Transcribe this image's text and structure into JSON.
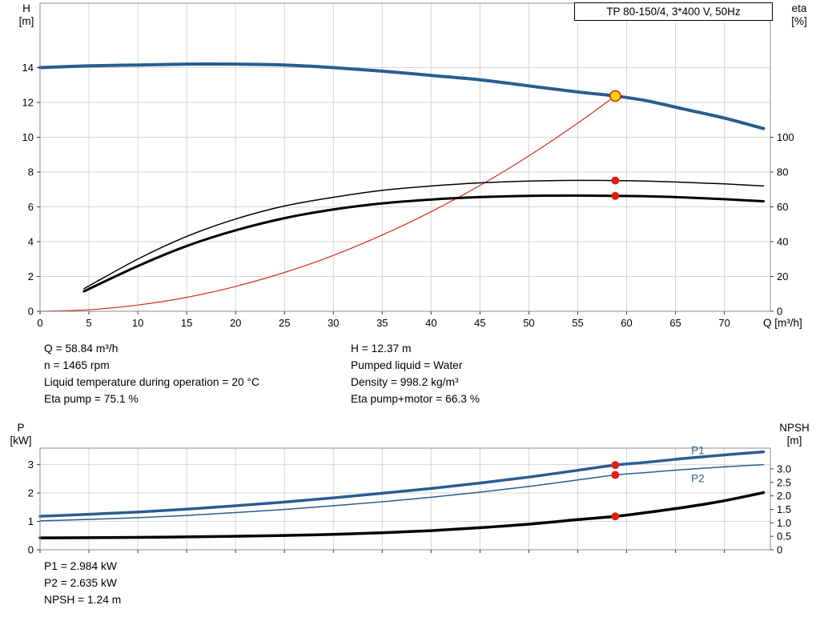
{
  "title_box": {
    "label": "TP 80-150/4, 3*400 V, 50Hz"
  },
  "axis_labels": {
    "h_name": "H",
    "h_unit": "[m]",
    "eta_name": "eta",
    "eta_unit": "[%]",
    "q_label": "Q [m³/h]",
    "p_name": "P",
    "p_unit": "[kW]",
    "npsh_name": "NPSH",
    "npsh_unit": "[m]"
  },
  "details": {
    "left": [
      "Q = 58.84 m³/h",
      "n = 1465 rpm",
      "Liquid temperature during operation = 20 °C",
      "Eta pump = 75.1 %"
    ],
    "right": [
      "H = 12.37 m",
      "Pumped liquid = Water",
      "Density = 998.2 kg/m³",
      "Eta pump+motor = 66.3 %"
    ]
  },
  "results": [
    "P1 = 2.984 kW",
    "P2 = 2.635 kW",
    "NPSH = 1.24 m"
  ],
  "colors": {
    "curve_blue": "#2a5d8f",
    "curve_red": "#d92b1c",
    "curve_black": "#000000",
    "duty_point_yellow": "#ffd800",
    "dot_red": "#e01f14",
    "grid": "#d6d6d6",
    "frame": "#8c8c8c",
    "tick": "#3c3c3c"
  },
  "chart_data": [
    {
      "type": "line",
      "title": "TP 80-150/4, 3*400 V, 50Hz",
      "xlabel": "Q [m³/h]",
      "x": {
        "min": 0,
        "max": 74.7,
        "ticks": [
          0,
          5,
          10,
          15,
          20,
          25,
          30,
          35,
          40,
          45,
          50,
          55,
          60,
          65,
          70
        ],
        "show_labels": true,
        "grid": true
      },
      "axes": {
        "H": {
          "side": "left",
          "label": "H [m]",
          "min": 0,
          "max": 17.7,
          "ticks": [
            0,
            2,
            4,
            6,
            8,
            10,
            12,
            14
          ],
          "grid": true
        },
        "eta": {
          "side": "right",
          "label": "eta [%]",
          "min": 0,
          "max": 177,
          "ticks": [
            0,
            20,
            40,
            60,
            80,
            100
          ]
        }
      },
      "series": [
        {
          "name": "head-curve",
          "axis": "H",
          "color": "#2a5d8f",
          "width": 4,
          "x": [
            0,
            5,
            10,
            15,
            20,
            25,
            30,
            35,
            40,
            45,
            50,
            55,
            58.84,
            62,
            66,
            70,
            74
          ],
          "y": [
            14.0,
            14.1,
            14.15,
            14.2,
            14.2,
            14.15,
            14.0,
            13.8,
            13.55,
            13.3,
            12.95,
            12.6,
            12.37,
            12.1,
            11.6,
            11.1,
            10.5
          ]
        },
        {
          "name": "system-curve",
          "axis": "H",
          "color": "#d92b1c",
          "width": 1.2,
          "x": [
            0,
            5,
            10,
            15,
            20,
            25,
            30,
            35,
            40,
            45,
            50,
            55,
            58.84
          ],
          "y": [
            0,
            0.09,
            0.36,
            0.8,
            1.43,
            2.23,
            3.21,
            4.38,
            5.72,
            7.23,
            8.93,
            10.81,
            12.37
          ]
        },
        {
          "name": "eta-pump-curve",
          "axis": "eta",
          "color": "#000000",
          "width": 1.5,
          "x": [
            4.5,
            10,
            15,
            20,
            25,
            30,
            35,
            40,
            45,
            50,
            55,
            58.84,
            62,
            66,
            70,
            74
          ],
          "y": [
            13,
            30,
            43,
            53,
            60.5,
            65.5,
            69.5,
            72,
            73.8,
            74.8,
            75.2,
            75.1,
            74.8,
            74.1,
            73.2,
            72.0
          ]
        },
        {
          "name": "eta-pump-motor-curve",
          "axis": "eta",
          "color": "#000000",
          "width": 3,
          "x": [
            4.5,
            10,
            15,
            20,
            25,
            30,
            35,
            40,
            45,
            50,
            55,
            58.84,
            62,
            66,
            70,
            74
          ],
          "y": [
            11.5,
            26,
            37.5,
            46.5,
            53.5,
            58.5,
            62,
            64.2,
            65.6,
            66.3,
            66.5,
            66.3,
            66.1,
            65.4,
            64.4,
            63.2
          ]
        }
      ],
      "points": [
        {
          "name": "eta-pump-point",
          "x": 58.84,
          "y": 75.1,
          "axis": "eta",
          "r": 5,
          "fill": "#e01f14"
        },
        {
          "name": "eta-pump-motor-point",
          "x": 58.84,
          "y": 66.3,
          "axis": "eta",
          "r": 5,
          "fill": "#e01f14"
        },
        {
          "name": "duty-point",
          "x": 58.84,
          "y": 12.37,
          "axis": "H",
          "r": 6.5,
          "fill": "#ffd800",
          "stroke": "#d92b1c",
          "stroke_width": 1.6
        }
      ]
    },
    {
      "type": "line",
      "x": {
        "min": 0,
        "max": 74.7,
        "ticks": [
          0,
          5,
          10,
          15,
          20,
          25,
          30,
          35,
          40,
          45,
          50,
          55,
          60,
          65,
          70
        ],
        "show_labels": false,
        "grid": true
      },
      "axes": {
        "P": {
          "side": "left",
          "label": "P [kW]",
          "min": 0,
          "max": 3.58,
          "ticks": [
            0,
            1,
            2,
            3
          ],
          "grid": true
        },
        "NPSH": {
          "side": "right",
          "label": "NPSH [m]",
          "min": 0,
          "max": 3.77,
          "ticks": [
            "0",
            "0.5",
            "1.0",
            "1.5",
            "2.0",
            "2.5",
            "3.0"
          ]
        }
      },
      "series": [
        {
          "name": "p1-curve",
          "axis": "P",
          "color": "#2a5d8f",
          "width": 3.5,
          "x": [
            0,
            5,
            10,
            15,
            20,
            25,
            30,
            35,
            40,
            45,
            50,
            55,
            58.84,
            62,
            66,
            70,
            74
          ],
          "y": [
            1.18,
            1.25,
            1.33,
            1.43,
            1.55,
            1.68,
            1.83,
            1.99,
            2.16,
            2.35,
            2.56,
            2.8,
            2.984,
            3.08,
            3.22,
            3.34,
            3.45
          ]
        },
        {
          "name": "p2-curve",
          "axis": "P",
          "color": "#2a5d8f",
          "width": 1.5,
          "x": [
            0,
            5,
            10,
            15,
            20,
            25,
            30,
            35,
            40,
            45,
            50,
            55,
            58.84,
            62,
            66,
            70,
            74
          ],
          "y": [
            1.02,
            1.07,
            1.13,
            1.21,
            1.31,
            1.42,
            1.55,
            1.69,
            1.85,
            2.03,
            2.23,
            2.46,
            2.635,
            2.72,
            2.83,
            2.92,
            3.0
          ]
        },
        {
          "name": "npsh-curve",
          "axis": "NPSH",
          "color": "#000000",
          "width": 3.5,
          "x": [
            0,
            5,
            10,
            15,
            20,
            25,
            30,
            35,
            40,
            45,
            50,
            55,
            58.84,
            62,
            66,
            70,
            74
          ],
          "y": [
            0.44,
            0.45,
            0.46,
            0.48,
            0.5,
            0.53,
            0.57,
            0.63,
            0.71,
            0.82,
            0.95,
            1.12,
            1.24,
            1.38,
            1.58,
            1.82,
            2.12
          ]
        }
      ],
      "points": [
        {
          "name": "p1-point",
          "x": 58.84,
          "y": 2.984,
          "axis": "P",
          "r": 5,
          "fill": "#e01f14"
        },
        {
          "name": "p2-point",
          "x": 58.84,
          "y": 2.635,
          "axis": "P",
          "r": 5,
          "fill": "#e01f14"
        },
        {
          "name": "npsh-point",
          "x": 58.84,
          "y": 1.24,
          "axis": "NPSH",
          "r": 5,
          "fill": "#e01f14"
        }
      ],
      "annotations": [
        {
          "text": "P1",
          "x": 66.6,
          "y": 3.48,
          "axis": "P",
          "color": "#2a5d8f"
        },
        {
          "text": "P2",
          "x": 66.6,
          "y": 2.5,
          "axis": "P",
          "color": "#2a5d8f"
        }
      ]
    }
  ]
}
